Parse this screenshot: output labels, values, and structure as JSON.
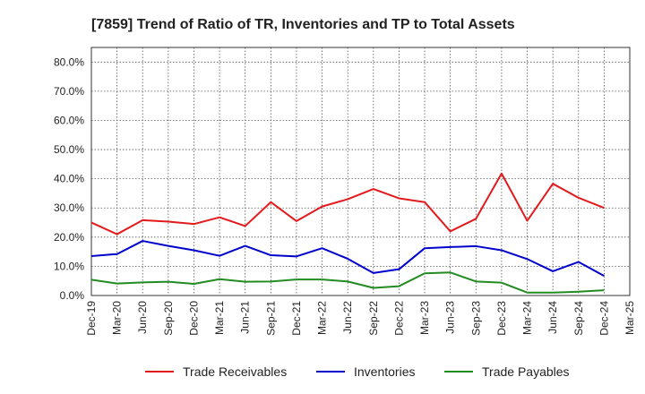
{
  "chart_data": {
    "type": "line",
    "title": "[7859]  Trend of Ratio of TR, Inventories and TP to Total Assets",
    "xlabel": "",
    "ylabel": "",
    "ylim": [
      0,
      85
    ],
    "y_ticks": [
      0,
      10,
      20,
      30,
      40,
      50,
      60,
      70,
      80
    ],
    "y_tick_labels": [
      "0.0%",
      "10.0%",
      "20.0%",
      "30.0%",
      "40.0%",
      "50.0%",
      "60.0%",
      "70.0%",
      "80.0%"
    ],
    "x_tick_labels": [
      "Dec-19",
      "Mar-20",
      "Jun-20",
      "Sep-20",
      "Dec-20",
      "Mar-21",
      "Jun-21",
      "Sep-21",
      "Dec-21",
      "Mar-22",
      "Jun-22",
      "Sep-22",
      "Dec-22",
      "Mar-23",
      "Jun-23",
      "Sep-23",
      "Dec-23",
      "Mar-24",
      "Jun-24",
      "Sep-24",
      "Dec-24",
      "Mar-25"
    ],
    "grid": true,
    "legend": "bottom",
    "categories": [
      "Dec-19",
      "Mar-20",
      "Jun-20",
      "Sep-20",
      "Dec-20",
      "Mar-21",
      "Jun-21",
      "Sep-21",
      "Dec-21",
      "Mar-22",
      "Jun-22",
      "Sep-22",
      "Dec-22",
      "Mar-23",
      "Jun-23",
      "Sep-23",
      "Dec-23",
      "Mar-24",
      "Jun-24",
      "Sep-24",
      "Dec-24"
    ],
    "series": [
      {
        "name": "Trade Receivables",
        "color": "#e31a1c",
        "values": [
          25.0,
          21.0,
          25.8,
          25.3,
          24.5,
          26.8,
          23.8,
          32.0,
          25.5,
          30.5,
          33.0,
          36.5,
          33.3,
          32.0,
          22.0,
          26.3,
          41.8,
          25.6,
          38.3,
          33.5,
          30.0
        ]
      },
      {
        "name": "Inventories",
        "color": "#0000cc",
        "values": [
          13.5,
          14.2,
          18.7,
          17.0,
          15.5,
          13.6,
          17.0,
          13.8,
          13.4,
          16.2,
          12.6,
          7.7,
          9.0,
          16.2,
          16.6,
          16.9,
          15.5,
          12.5,
          8.3,
          11.5,
          6.7
        ]
      },
      {
        "name": "Trade Payables",
        "color": "#228b22",
        "values": [
          5.4,
          4.1,
          4.5,
          4.7,
          4.0,
          5.6,
          4.7,
          4.8,
          5.5,
          5.5,
          4.8,
          2.6,
          3.2,
          7.6,
          7.9,
          4.8,
          4.4,
          1.0,
          1.0,
          1.3,
          1.8
        ]
      }
    ]
  }
}
